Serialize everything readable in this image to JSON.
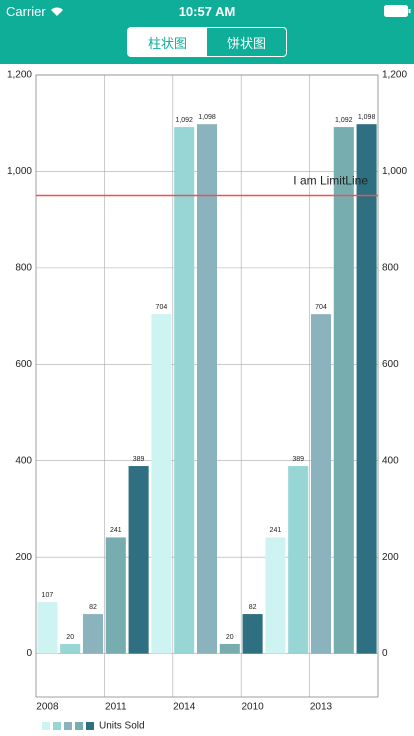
{
  "status_bar": {
    "carrier": "Carrier",
    "time": "10:57 AM"
  },
  "segmented_control": {
    "options": [
      "柱状图",
      "饼状图"
    ],
    "selected": 0
  },
  "chart_data": {
    "type": "bar",
    "categories": [
      "2008",
      null,
      null,
      "2011",
      null,
      null,
      "2014",
      null,
      null,
      "2010",
      null,
      null,
      "2013",
      null,
      null
    ],
    "series": [
      {
        "name": "Units Sold",
        "colors": [
          "#cdf3f3",
          "#98d6d6",
          "#8ab3bd",
          "#78adb0",
          "#2e6f82"
        ],
        "values": [
          107,
          20,
          82,
          241,
          389,
          704,
          1092,
          1098,
          20,
          82,
          241,
          389,
          704,
          1092,
          1098
        ],
        "value_labels": [
          "107",
          "20",
          "82",
          "241",
          "389",
          "704",
          "1,092",
          "1,098",
          "20",
          "82",
          "241",
          "389",
          "704",
          "1,092",
          "1,098"
        ]
      }
    ],
    "ylim": [
      -90,
      1200
    ],
    "yticks": [
      0,
      200,
      400,
      600,
      800,
      {
        "value": 1000,
        "label": "1,000"
      },
      {
        "value": 1200,
        "label": "1,200"
      }
    ],
    "limit_line": {
      "value": 950,
      "label": "I am LimitLine",
      "color": "#e8554e"
    },
    "grid": true,
    "legend": "bottom-left"
  }
}
